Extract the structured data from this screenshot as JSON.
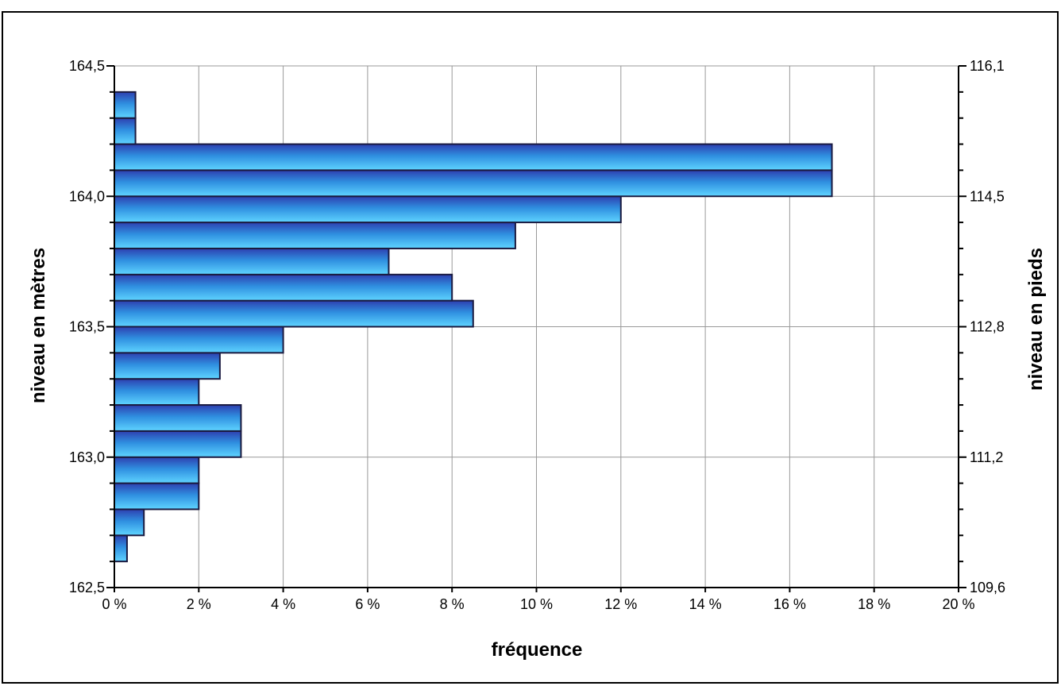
{
  "chart_data": {
    "type": "bar",
    "orientation": "horizontal",
    "xlabel": "fréquence",
    "ylabel": "niveau en mètres",
    "y2label": "niveau en pieds",
    "xlim": [
      0,
      20
    ],
    "ylim": [
      162.5,
      164.5
    ],
    "y2lim": [
      109.6,
      116.1
    ],
    "x_ticks": [
      "0 %",
      "2 %",
      "4 %",
      "6 %",
      "8 %",
      "10 %",
      "12 %",
      "14 %",
      "16 %",
      "18 %",
      "20 %"
    ],
    "y_ticks": [
      "162,5",
      "163,0",
      "163,5",
      "164,0",
      "164,5"
    ],
    "y2_ticks": [
      "109,6",
      "111,2",
      "112,8",
      "114,5",
      "116,1"
    ],
    "grid": true,
    "bar_colors": {
      "edge": "#1a1a40",
      "dark": "#2e3fb0",
      "mid": "#2f8fe0",
      "light": "#5fd4ff"
    },
    "bars": [
      {
        "from": 162.6,
        "to": 162.7,
        "value": 0.3
      },
      {
        "from": 162.7,
        "to": 162.8,
        "value": 0.7
      },
      {
        "from": 162.8,
        "to": 162.9,
        "value": 2.0
      },
      {
        "from": 162.9,
        "to": 163.0,
        "value": 2.0
      },
      {
        "from": 163.0,
        "to": 163.1,
        "value": 3.0
      },
      {
        "from": 163.1,
        "to": 163.2,
        "value": 3.0
      },
      {
        "from": 163.2,
        "to": 163.3,
        "value": 2.0
      },
      {
        "from": 163.3,
        "to": 163.4,
        "value": 2.5
      },
      {
        "from": 163.4,
        "to": 163.5,
        "value": 4.0
      },
      {
        "from": 163.5,
        "to": 163.6,
        "value": 8.5
      },
      {
        "from": 163.6,
        "to": 163.7,
        "value": 8.0
      },
      {
        "from": 163.7,
        "to": 163.8,
        "value": 6.5
      },
      {
        "from": 163.8,
        "to": 163.9,
        "value": 9.5
      },
      {
        "from": 163.9,
        "to": 164.0,
        "value": 12.0
      },
      {
        "from": 164.0,
        "to": 164.1,
        "value": 17.0
      },
      {
        "from": 164.1,
        "to": 164.2,
        "value": 17.0
      },
      {
        "from": 164.2,
        "to": 164.3,
        "value": 0.5
      },
      {
        "from": 164.3,
        "to": 164.4,
        "value": 0.5
      }
    ]
  }
}
